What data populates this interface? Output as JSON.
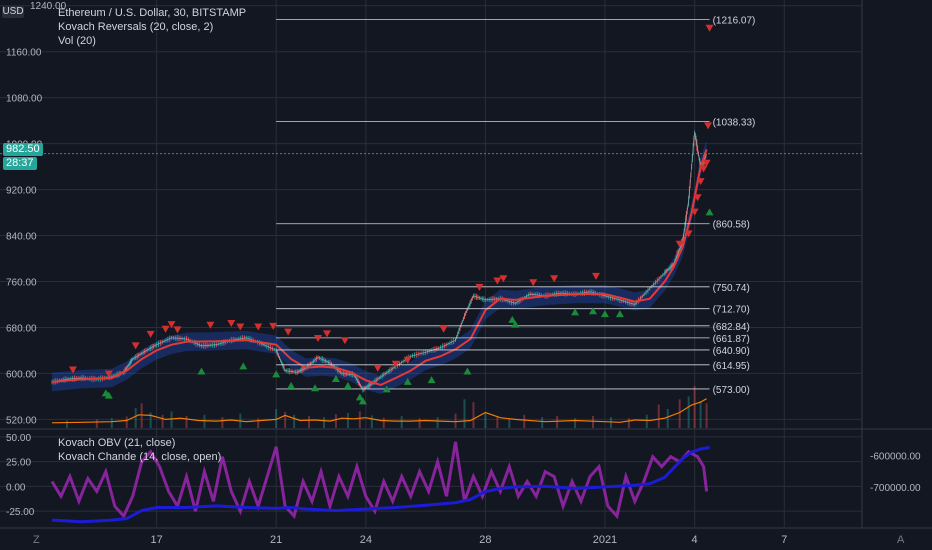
{
  "header": {
    "currency_button": "USD",
    "top_price_cut": "1240.00",
    "symbol_line": "Ethereum / U.S. Dollar, 30, BITSTAMP",
    "indicator_1": "Kovach Reversals (20, close, 2)",
    "indicator_2": "Vol (20)"
  },
  "lower_pane": {
    "indicator_1": "Kovach OBV (21, close)",
    "indicator_2": "Kovach Chande (14, close, open)"
  },
  "price_tags": {
    "last_price": "982.50",
    "countdown": "28:37"
  },
  "bottom_bar": {
    "left": "Z",
    "right": "A"
  },
  "colors": {
    "background": "#131722",
    "grid": "#2a2e39",
    "candle_up": "#26a69a",
    "candle_down": "#ef5350",
    "ma_line": "#e53935",
    "band_fill": "#2962ff",
    "volume_line": "#f57c00",
    "obv_line": "#1c1cd6",
    "chande_line": "#9c27b0",
    "reversal_down": "#d32f2f",
    "reversal_up": "#1b8a3a",
    "last_price_tag": "#26a69a"
  },
  "chart_data": {
    "type": "line",
    "price_axis_ticks": [
      "1240.00",
      "1160.00",
      "1080.00",
      "1000.00",
      "920.00",
      "840.00",
      "760.00",
      "680.00",
      "600.00",
      "520.00"
    ],
    "price_axis_values": [
      1240,
      1160,
      1080,
      1000,
      920,
      840,
      760,
      680,
      600,
      520
    ],
    "price_ylim": [
      505,
      1250
    ],
    "oscillator_axis_ticks": [
      "50.00",
      "25.00",
      "0.00",
      "-25.00"
    ],
    "oscillator_axis_values": [
      50,
      25,
      0,
      -25
    ],
    "oscillator_ylim": [
      -42,
      57
    ],
    "obv_axis_ticks": [
      "-600000.00",
      "-700000.00"
    ],
    "obv_axis_values": [
      -600000,
      -700000
    ],
    "obv_ylim": [
      -830000,
      -520000
    ],
    "x_range": [
      13.5,
      40.6
    ],
    "time_axis_ticks": [
      {
        "label": "17",
        "x": 17
      },
      {
        "label": "21",
        "x": 21
      },
      {
        "label": "24",
        "x": 24
      },
      {
        "label": "28",
        "x": 28
      },
      {
        "label": "2021",
        "x": 32
      },
      {
        "label": "4",
        "x": 35
      },
      {
        "label": "7",
        "x": 38
      }
    ],
    "levels": [
      {
        "label": "(1216.07)",
        "value": 1216.07
      },
      {
        "label": "(1038.33)",
        "value": 1038.33
      },
      {
        "label": "(860.58)",
        "value": 860.58
      },
      {
        "label": "(750.74)",
        "value": 750.74
      },
      {
        "label": "(712.70)",
        "value": 712.7
      },
      {
        "label": "(682.84)",
        "value": 682.84
      },
      {
        "label": "(661.87)",
        "value": 661.87
      },
      {
        "label": "(640.90)",
        "value": 640.9
      },
      {
        "label": "(614.95)",
        "value": 614.95
      },
      {
        "label": "(573.00)",
        "value": 573.0
      }
    ],
    "levels_x_range": [
      21,
      35.5
    ],
    "price": {
      "x": [
        13.5,
        14.0,
        14.5,
        15.0,
        15.5,
        15.9,
        16.2,
        16.6,
        17.0,
        17.5,
        18.0,
        18.5,
        19.0,
        19.5,
        20.0,
        20.5,
        21.0,
        21.3,
        21.7,
        22.0,
        22.4,
        22.8,
        23.2,
        23.6,
        23.9,
        24.2,
        24.6,
        25.0,
        25.5,
        26.0,
        26.5,
        27.0,
        27.3,
        27.6,
        28.0,
        28.5,
        29.0,
        29.5,
        30.0,
        30.5,
        31.0,
        31.5,
        32.0,
        32.5,
        33.0,
        33.5,
        34.0,
        34.3,
        34.6,
        34.8,
        35.0,
        35.2,
        35.4
      ],
      "close": [
        585,
        590,
        592,
        590,
        594,
        602,
        625,
        638,
        650,
        662,
        660,
        648,
        650,
        658,
        662,
        652,
        640,
        605,
        602,
        610,
        628,
        618,
        600,
        598,
        572,
        582,
        598,
        612,
        630,
        637,
        645,
        658,
        700,
        735,
        728,
        730,
        722,
        738,
        735,
        740,
        738,
        742,
        735,
        728,
        720,
        748,
        775,
        790,
        830,
        900,
        1020,
        960,
        982
      ]
    },
    "ma20": {
      "x": [
        13.5,
        14.5,
        15.5,
        16.0,
        16.5,
        17.0,
        17.5,
        18.0,
        19.0,
        20.0,
        21.0,
        21.5,
        22.0,
        22.5,
        23.0,
        23.5,
        24.0,
        24.5,
        25.0,
        25.5,
        26.0,
        26.5,
        27.0,
        27.5,
        28.0,
        28.5,
        29.0,
        30.0,
        31.0,
        32.0,
        32.5,
        33.0,
        33.5,
        34.0,
        34.3,
        34.6,
        34.9,
        35.2,
        35.4
      ],
      "values": [
        585,
        590,
        592,
        605,
        625,
        640,
        650,
        655,
        656,
        658,
        650,
        625,
        610,
        612,
        610,
        602,
        588,
        580,
        592,
        605,
        622,
        630,
        642,
        660,
        710,
        730,
        728,
        735,
        738,
        738,
        732,
        725,
        730,
        760,
        785,
        820,
        880,
        960,
        990
      ]
    },
    "volume_line": {
      "x": [
        13.5,
        14.5,
        15.5,
        16.0,
        16.4,
        16.8,
        17.3,
        17.8,
        18.4,
        19.0,
        19.5,
        20.0,
        20.5,
        21.0,
        21.3,
        21.8,
        22.3,
        22.8,
        23.2,
        23.6,
        24.0,
        24.5,
        25.0,
        25.5,
        26.0,
        26.5,
        27.0,
        27.5,
        28.0,
        28.5,
        29.0,
        30.0,
        31.0,
        32.0,
        32.5,
        33.0,
        33.5,
        34.0,
        34.5,
        34.9,
        35.2,
        35.4
      ],
      "values": [
        514,
        515,
        516,
        518,
        528,
        527,
        520,
        522,
        518,
        517,
        519,
        516,
        518,
        520,
        527,
        518,
        519,
        517,
        522,
        521,
        523,
        518,
        517,
        517,
        518,
        517,
        516,
        518,
        532,
        523,
        520,
        516,
        518,
        516,
        515,
        519,
        518,
        522,
        532,
        545,
        550,
        556
      ]
    },
    "volume_bars": {
      "x": [
        14.0,
        15.0,
        15.5,
        16.0,
        16.3,
        16.5,
        16.8,
        17.2,
        17.5,
        18.0,
        18.6,
        19.2,
        19.8,
        20.4,
        21.0,
        21.3,
        21.6,
        22.1,
        22.6,
        23.0,
        23.4,
        23.8,
        24.2,
        24.6,
        25.2,
        25.8,
        26.4,
        27.0,
        27.3,
        27.6,
        28.0,
        28.4,
        28.8,
        29.3,
        29.9,
        30.4,
        31.0,
        31.6,
        32.2,
        32.8,
        33.4,
        33.8,
        34.1,
        34.5,
        34.8,
        35.0,
        35.2,
        35.4
      ],
      "values": [
        518,
        520,
        522,
        525,
        540,
        548,
        532,
        528,
        534,
        526,
        528,
        524,
        530,
        522,
        538,
        533,
        528,
        526,
        524,
        529,
        531,
        534,
        527,
        523,
        526,
        522,
        524,
        530,
        555,
        550,
        530,
        526,
        522,
        528,
        524,
        526,
        522,
        526,
        524,
        522,
        528,
        546,
        538,
        555,
        560,
        578,
        552,
        548
      ]
    },
    "reversal_down_markers": [
      {
        "x": 14.2,
        "y": 605
      },
      {
        "x": 15.4,
        "y": 598
      },
      {
        "x": 16.3,
        "y": 647
      },
      {
        "x": 16.8,
        "y": 667
      },
      {
        "x": 17.3,
        "y": 676
      },
      {
        "x": 17.5,
        "y": 684
      },
      {
        "x": 17.7,
        "y": 675
      },
      {
        "x": 18.8,
        "y": 683
      },
      {
        "x": 19.5,
        "y": 686
      },
      {
        "x": 19.8,
        "y": 680
      },
      {
        "x": 20.4,
        "y": 680
      },
      {
        "x": 20.9,
        "y": 681
      },
      {
        "x": 21.4,
        "y": 671
      },
      {
        "x": 22.4,
        "y": 660
      },
      {
        "x": 22.7,
        "y": 668
      },
      {
        "x": 23.3,
        "y": 656
      },
      {
        "x": 24.4,
        "y": 608
      },
      {
        "x": 25.0,
        "y": 615
      },
      {
        "x": 25.4,
        "y": 622
      },
      {
        "x": 26.6,
        "y": 676
      },
      {
        "x": 27.8,
        "y": 749
      },
      {
        "x": 28.4,
        "y": 760
      },
      {
        "x": 28.6,
        "y": 764
      },
      {
        "x": 29.6,
        "y": 757
      },
      {
        "x": 30.3,
        "y": 764
      },
      {
        "x": 31.7,
        "y": 768
      },
      {
        "x": 34.5,
        "y": 824
      },
      {
        "x": 34.8,
        "y": 842
      },
      {
        "x": 35.0,
        "y": 880
      },
      {
        "x": 35.1,
        "y": 905
      },
      {
        "x": 35.2,
        "y": 933
      },
      {
        "x": 35.3,
        "y": 955
      },
      {
        "x": 35.4,
        "y": 965
      },
      {
        "x": 35.45,
        "y": 1030
      },
      {
        "x": 35.5,
        "y": 1200
      }
    ],
    "reversal_up_markers": [
      {
        "x": 15.3,
        "y": 567
      },
      {
        "x": 15.4,
        "y": 563
      },
      {
        "x": 18.5,
        "y": 605
      },
      {
        "x": 19.9,
        "y": 614
      },
      {
        "x": 21.0,
        "y": 600
      },
      {
        "x": 21.5,
        "y": 580
      },
      {
        "x": 22.3,
        "y": 576
      },
      {
        "x": 23.0,
        "y": 592
      },
      {
        "x": 23.4,
        "y": 580
      },
      {
        "x": 23.8,
        "y": 560
      },
      {
        "x": 23.9,
        "y": 553
      },
      {
        "x": 24.7,
        "y": 574
      },
      {
        "x": 25.4,
        "y": 587
      },
      {
        "x": 26.2,
        "y": 590
      },
      {
        "x": 27.4,
        "y": 605
      },
      {
        "x": 28.9,
        "y": 695
      },
      {
        "x": 29.0,
        "y": 687
      },
      {
        "x": 31.0,
        "y": 708
      },
      {
        "x": 31.6,
        "y": 710
      },
      {
        "x": 32.0,
        "y": 705
      },
      {
        "x": 32.5,
        "y": 705
      },
      {
        "x": 35.5,
        "y": 882
      }
    ],
    "chande": {
      "x": [
        13.5,
        13.8,
        14.1,
        14.4,
        14.7,
        15.0,
        15.3,
        15.6,
        15.9,
        16.2,
        16.5,
        16.8,
        17.1,
        17.4,
        17.7,
        18.0,
        18.3,
        18.6,
        18.9,
        19.2,
        19.5,
        19.8,
        20.1,
        20.4,
        20.7,
        21.0,
        21.3,
        21.6,
        21.9,
        22.2,
        22.5,
        22.8,
        23.1,
        23.4,
        23.7,
        24.0,
        24.3,
        24.6,
        24.9,
        25.2,
        25.5,
        25.8,
        26.1,
        26.4,
        26.7,
        27.0,
        27.3,
        27.6,
        27.9,
        28.2,
        28.5,
        28.8,
        29.1,
        29.4,
        29.7,
        30.0,
        30.3,
        30.6,
        30.9,
        31.2,
        31.5,
        31.8,
        32.1,
        32.4,
        32.7,
        33.0,
        33.3,
        33.6,
        33.9,
        34.2,
        34.5,
        34.8,
        35.1,
        35.3,
        35.4
      ],
      "values": [
        5,
        -10,
        10,
        -15,
        8,
        -5,
        15,
        -20,
        -30,
        -10,
        25,
        35,
        20,
        -5,
        -20,
        10,
        -25,
        15,
        -15,
        30,
        -5,
        -25,
        5,
        -20,
        10,
        40,
        -20,
        -30,
        5,
        -15,
        15,
        -20,
        10,
        -10,
        20,
        -10,
        -25,
        5,
        -15,
        10,
        -10,
        15,
        -5,
        25,
        -10,
        45,
        -15,
        10,
        -10,
        15,
        -5,
        20,
        -10,
        5,
        -10,
        15,
        10,
        -20,
        5,
        -15,
        10,
        20,
        -20,
        -30,
        10,
        -15,
        5,
        30,
        20,
        30,
        25,
        35,
        30,
        20,
        -5
      ]
    },
    "obv": {
      "x": [
        13.5,
        14.5,
        15.5,
        16.0,
        16.2,
        16.5,
        17.0,
        18.0,
        19.0,
        20.0,
        21.0,
        21.5,
        22.0,
        23.0,
        24.0,
        25.0,
        26.0,
        27.0,
        27.5,
        28.0,
        28.5,
        29.0,
        30.0,
        31.0,
        32.0,
        33.0,
        33.5,
        34.0,
        34.3,
        34.6,
        34.9,
        35.2,
        35.5
      ],
      "values": [
        -805000,
        -810000,
        -805000,
        -800000,
        -790000,
        -775000,
        -765000,
        -765000,
        -760000,
        -765000,
        -768000,
        -765000,
        -770000,
        -775000,
        -770000,
        -765000,
        -758000,
        -750000,
        -740000,
        -715000,
        -705000,
        -700000,
        -698000,
        -705000,
        -700000,
        -695000,
        -690000,
        -670000,
        -640000,
        -610000,
        -590000,
        -580000,
        -575000
      ]
    }
  }
}
